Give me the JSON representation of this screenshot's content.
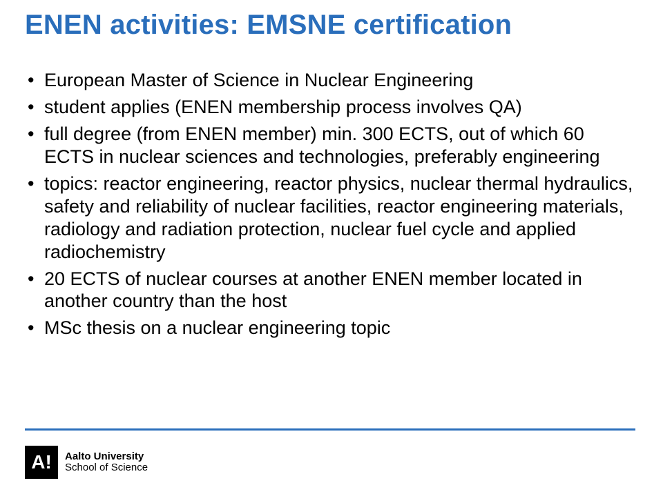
{
  "title": "ENEN activities: EMSNE certification",
  "title_color": "#2a6ebb",
  "title_fontsize": 40,
  "body_fontsize": 27,
  "body_color": "#000000",
  "rule_color": "#2a6ebb",
  "background_color": "#ffffff",
  "bullets": [
    "European Master of Science in Nuclear Engineering",
    "student applies (ENEN membership process involves QA)",
    "full degree (from ENEN member) min. 300 ECTS, out of which 60 ECTS in nuclear sciences and technologies, preferably engineering",
    "topics: reactor engineering, reactor physics, nuclear thermal hydraulics, safety and reliability of nuclear facilities, reactor engineering materials, radiology and radiation protection, nuclear fuel cycle and applied radiochemistry",
    "20 ECTS of nuclear courses at another ENEN member located in another country than the host",
    "MSc thesis on a nuclear engineering topic"
  ],
  "footer": {
    "logo_letter": "A!",
    "line1": "Aalto University",
    "line2": "School of Science"
  }
}
